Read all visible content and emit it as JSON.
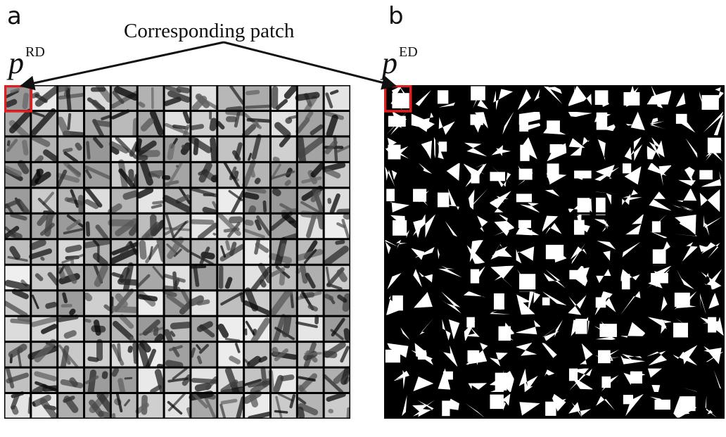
{
  "panels": {
    "a": {
      "letter": "a",
      "patch_label": {
        "symbol": "p",
        "superscript": "RD"
      }
    },
    "b": {
      "letter": "b",
      "patch_label": {
        "symbol": "p",
        "superscript": "ED"
      }
    }
  },
  "annotation": {
    "text": "Corresponding patch"
  },
  "grid": {
    "rows": 13,
    "cols": 13
  },
  "colors": {
    "highlight": "#e02020",
    "grid_line": "#000000",
    "binary_fg": "#ffffff",
    "binary_bg": "#000000"
  },
  "icons": {
    "left-panel": "grayscale-patch-grid",
    "right-panel": "binary-patch-grid"
  }
}
